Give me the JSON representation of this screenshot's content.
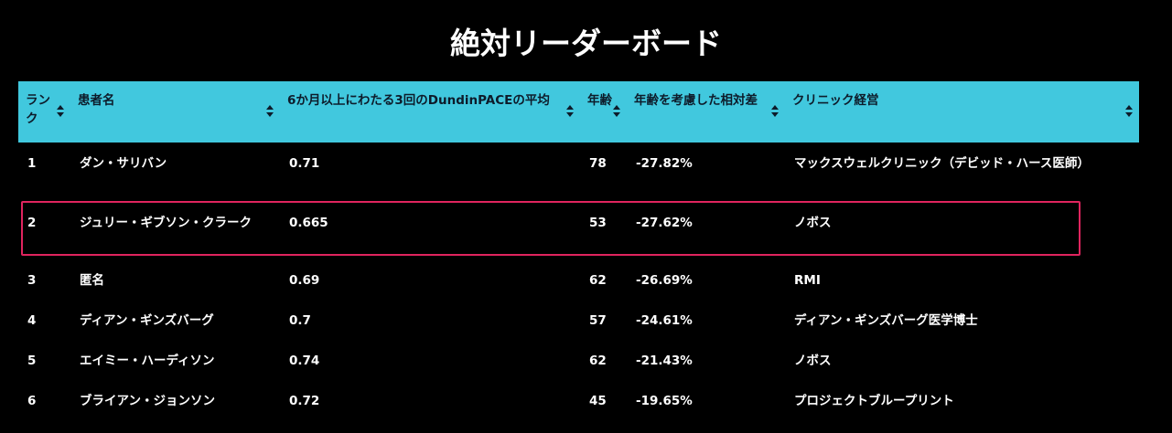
{
  "title": "絶対リーダーボード",
  "columns": [
    "ランク",
    "患者名",
    "6か月以上にわたる3回のDundinPACEの平均",
    "年齢",
    "年齢を考慮した相対差",
    "クリニック経営"
  ],
  "rows": [
    {
      "rank": "1",
      "name": "ダン・サリバン",
      "avg": "0.71",
      "age": "78",
      "diff": "-27.82%",
      "clinic": "マックスウェルクリニック（デビッド・ハース医師）"
    },
    {
      "rank": "2",
      "name": "ジュリー・ギブソン・クラーク",
      "avg": "0.665",
      "age": "53",
      "diff": "-27.62%",
      "clinic": "ノボス"
    },
    {
      "rank": "3",
      "name": "匿名",
      "avg": "0.69",
      "age": "62",
      "diff": "-26.69%",
      "clinic": "RMI"
    },
    {
      "rank": "4",
      "name": "ディアン・ギンズバーグ",
      "avg": "0.7",
      "age": "57",
      "diff": "-24.61%",
      "clinic": "ディアン・ギンズバーグ医学博士"
    },
    {
      "rank": "5",
      "name": "エイミー・ハーディソン",
      "avg": "0.74",
      "age": "62",
      "diff": "-21.43%",
      "clinic": "ノボス"
    },
    {
      "rank": "6",
      "name": "ブライアン・ジョンソン",
      "avg": "0.72",
      "age": "45",
      "diff": "-19.65%",
      "clinic": "プロジェクトブループリント"
    }
  ],
  "highlighted_rank": "2",
  "colors": {
    "background": "#000000",
    "header": "#41c8de",
    "highlight": "#e0245e"
  }
}
